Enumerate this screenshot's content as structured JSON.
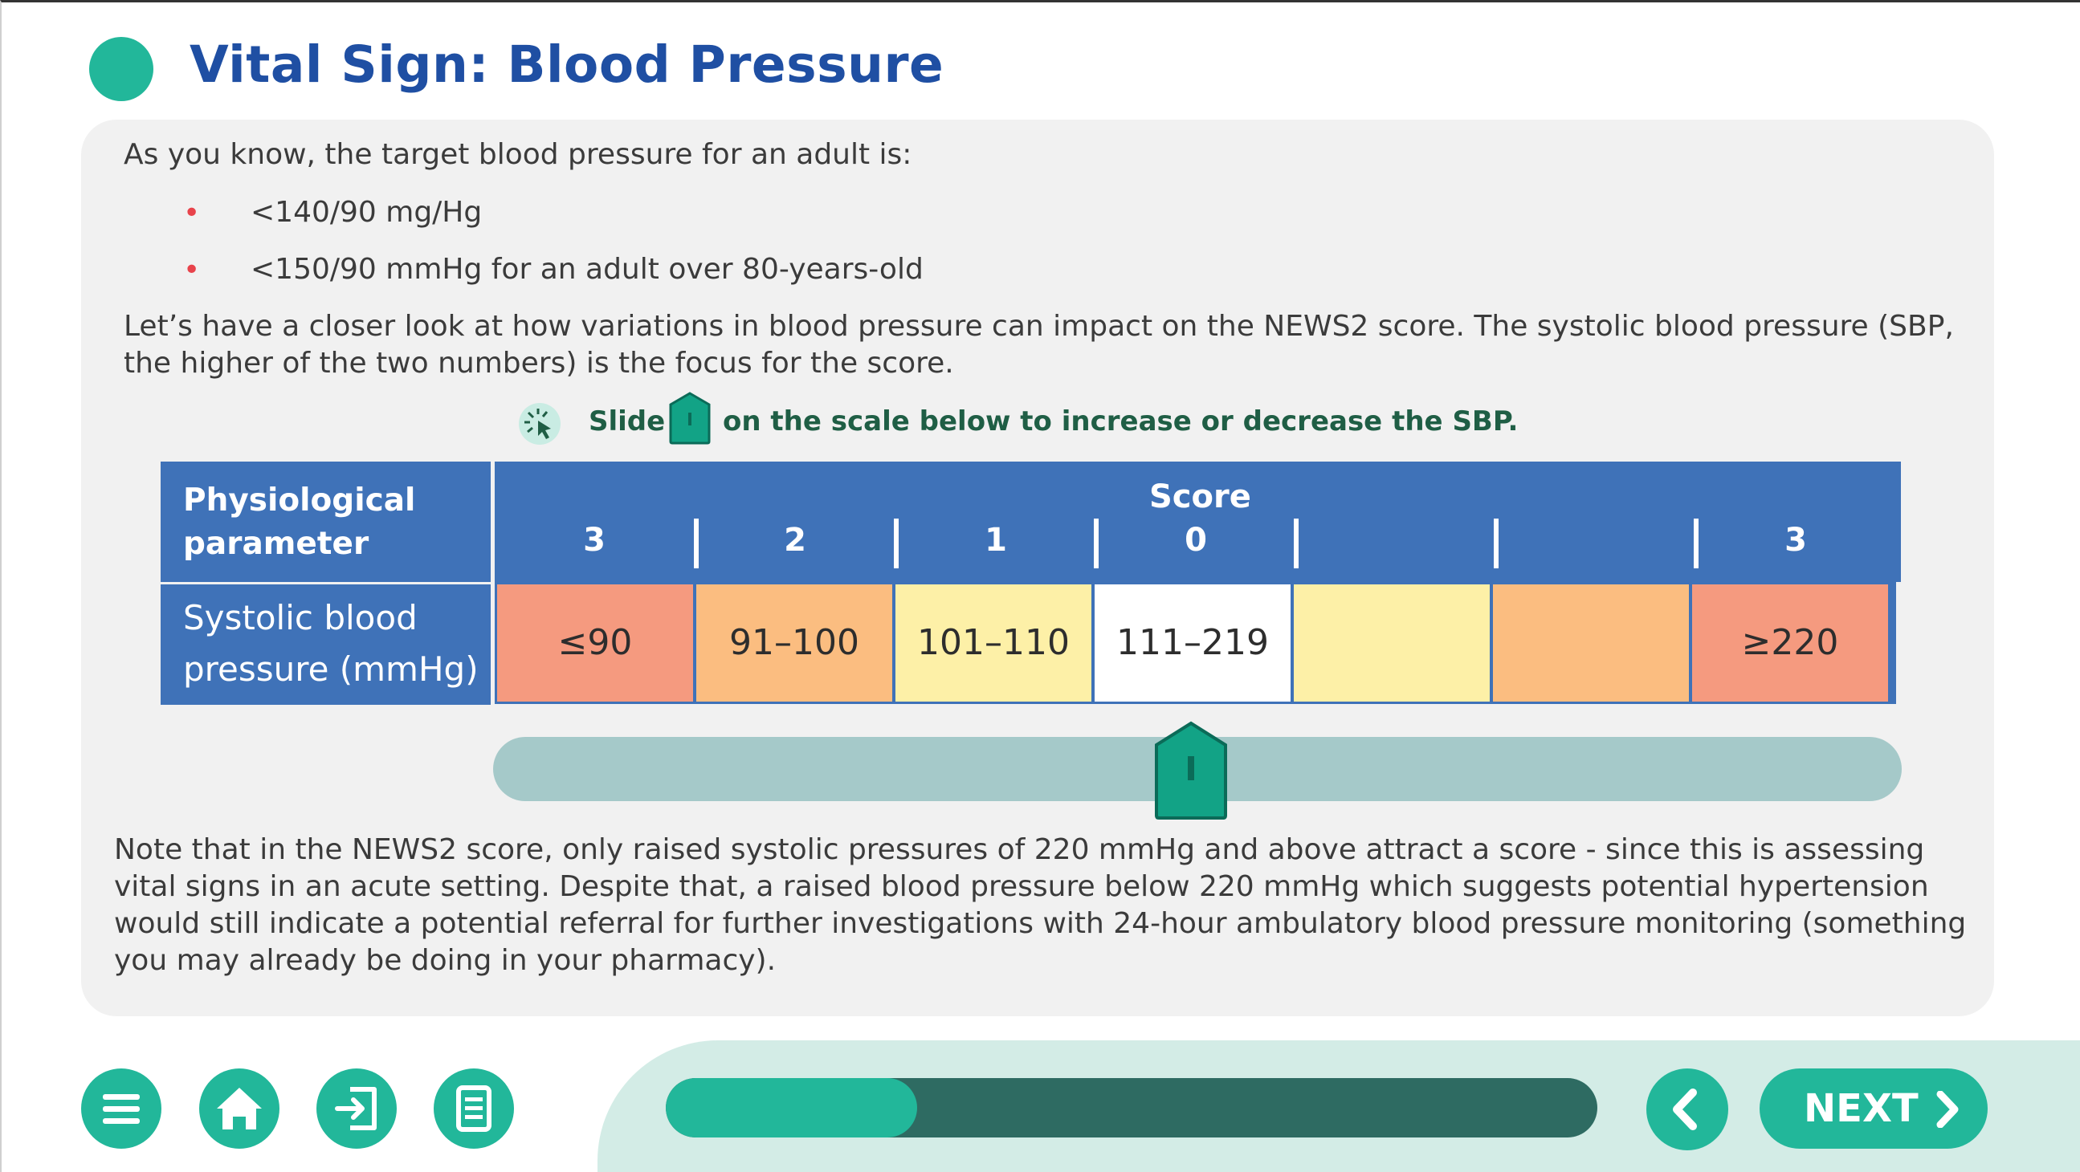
{
  "header": {
    "title": "Vital Sign: Blood Pressure"
  },
  "content": {
    "intro": "As you know, the target blood pressure for an adult is:",
    "bullets": [
      "<140/90 mg/Hg",
      "<150/90 mmHg for an adult over 80-years-old"
    ],
    "paragraph": "Let’s have a closer look at how variations in blood pressure can impact on the NEWS2 score. The systolic blood pressure (SBP, the higher of the two numbers) is the focus for the score.",
    "instruction": {
      "slide": "Slide",
      "text": "on the scale below to increase or decrease the SBP."
    },
    "note": "Note that in the NEWS2 score, only raised systolic pressures of 220 mmHg and above attract a score - since this is assessing vital signs in an acute setting. Despite that, a raised blood pressure below 220 mmHg which suggests potential hypertension would still indicate a potential referral for further investigations with 24-hour ambulatory blood pressure monitoring (something you may already be doing in your pharmacy)."
  },
  "table": {
    "param_header": "Physiological parameter",
    "score_header": "Score",
    "scores": [
      "3",
      "2",
      "1",
      "0",
      "",
      "",
      "3"
    ],
    "row_label": "Systolic blood pressure (mmHg)",
    "cells": [
      {
        "value": "≤90",
        "color": "#f59a7f"
      },
      {
        "value": "91–100",
        "color": "#fbbd80"
      },
      {
        "value": "101–110",
        "color": "#fdf0a7"
      },
      {
        "value": "111–219",
        "color": "#ffffff"
      },
      {
        "value": "",
        "color": "#fdf0a7"
      },
      {
        "value": "",
        "color": "#fbbd80"
      },
      {
        "value": "≥220",
        "color": "#f59a7f"
      }
    ]
  },
  "slider": {
    "position_fraction": 0.5
  },
  "footer": {
    "buttons": [
      "menu-icon",
      "home-icon",
      "exit-icon",
      "notes-icon"
    ],
    "progress": 0.27,
    "next_label": "NEXT"
  },
  "colors": {
    "accent": "#22b79a",
    "title": "#1f4fa3",
    "table_header": "#3f72b8"
  }
}
